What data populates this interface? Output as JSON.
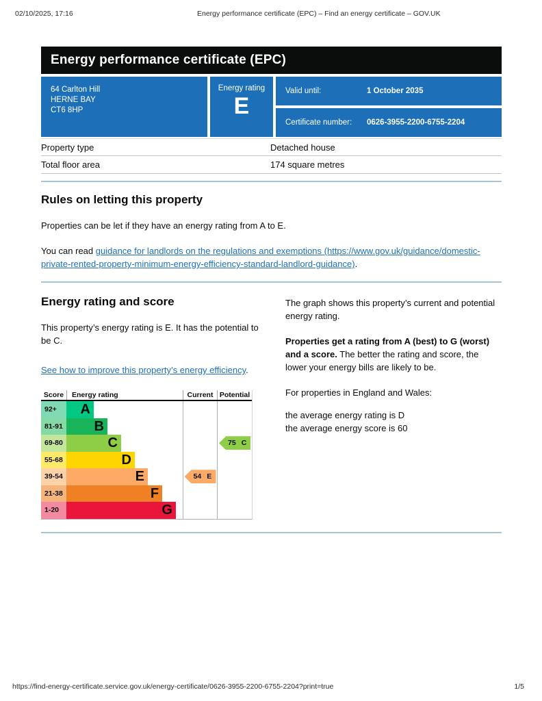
{
  "meta": {
    "datetime": "02/10/2025, 17:16",
    "doc_title": "Energy performance certificate (EPC) – Find an energy certificate – GOV.UK",
    "url": "https://find-energy-certificate.service.gov.uk/energy-certificate/0626-3955-2200-6755-2204?print=true",
    "page": "1/5"
  },
  "header": {
    "title": "Energy performance certificate (EPC)"
  },
  "banner": {
    "panel_color": "#1d70b8",
    "address_lines": [
      "64 Carlton Hill",
      "HERNE BAY",
      "CT6 8HP"
    ],
    "rating_label": "Energy rating",
    "rating_value": "E",
    "valid_until_label": "Valid until:",
    "valid_until_value": "1 October 2035",
    "cert_number_label": "Certificate number:",
    "cert_number_value": "0626-3955-2200-6755-2204"
  },
  "property": {
    "rows": [
      {
        "label": "Property type",
        "value": "Detached house"
      },
      {
        "label": "Total floor area",
        "value": "174 square metres"
      }
    ]
  },
  "rules": {
    "heading": "Rules on letting this property",
    "p1": "Properties can be let if they have an energy rating from A to E.",
    "p2_prefix": "You can read ",
    "link_text": "guidance for landlords on the regulations and exemptions (https://www.gov.uk/guidance/domestic-private-rented-property-minimum-energy-efficiency-standard-landlord-guidance)",
    "p2_suffix": "."
  },
  "score_section": {
    "heading": "Energy rating and score",
    "p1": "This property’s energy rating is E. It has the potential to be C.",
    "link_text": "See how to improve this property’s energy efficiency",
    "link_suffix": "."
  },
  "graph_info": {
    "p1": "The graph shows this property’s current and potential energy rating.",
    "p2_bold": "Properties get a rating from A (best) to G (worst) and a score.",
    "p2_rest": "The better the rating and score, the lower your energy bills are likely to be.",
    "p3": "For properties in England and Wales:",
    "avg_rating": "the average energy rating is D",
    "avg_score": "the average energy score is 60"
  },
  "chart_data": {
    "type": "bar",
    "title": "Energy rating and score graph",
    "columns": [
      "Score",
      "Energy rating",
      "Current",
      "Potential"
    ],
    "bands": [
      {
        "score": "92+",
        "letter": "A",
        "color": "#00c781",
        "tint": "#7fd9b3",
        "width_pct": 23.5
      },
      {
        "score": "81-91",
        "letter": "B",
        "color": "#19b459",
        "tint": "#84d9a4",
        "width_pct": 35.3
      },
      {
        "score": "69-80",
        "letter": "C",
        "color": "#8dce46",
        "tint": "#c4e69c",
        "width_pct": 47.0
      },
      {
        "score": "55-68",
        "letter": "D",
        "color": "#ffd500",
        "tint": "#ffe96a",
        "width_pct": 58.8
      },
      {
        "score": "39-54",
        "letter": "E",
        "color": "#fcaa65",
        "tint": "#fdd2a9",
        "width_pct": 70.0
      },
      {
        "score": "21-38",
        "letter": "F",
        "color": "#ef8023",
        "tint": "#f6b47d",
        "width_pct": 82.4
      },
      {
        "score": "1-20",
        "letter": "G",
        "color": "#e9153b",
        "tint": "#f48aa0",
        "width_pct": 94.1
      }
    ],
    "current": {
      "score": 54,
      "band": "E",
      "color": "#fcaa65"
    },
    "potential": {
      "score": 75,
      "band": "C",
      "color": "#8dce46"
    }
  }
}
